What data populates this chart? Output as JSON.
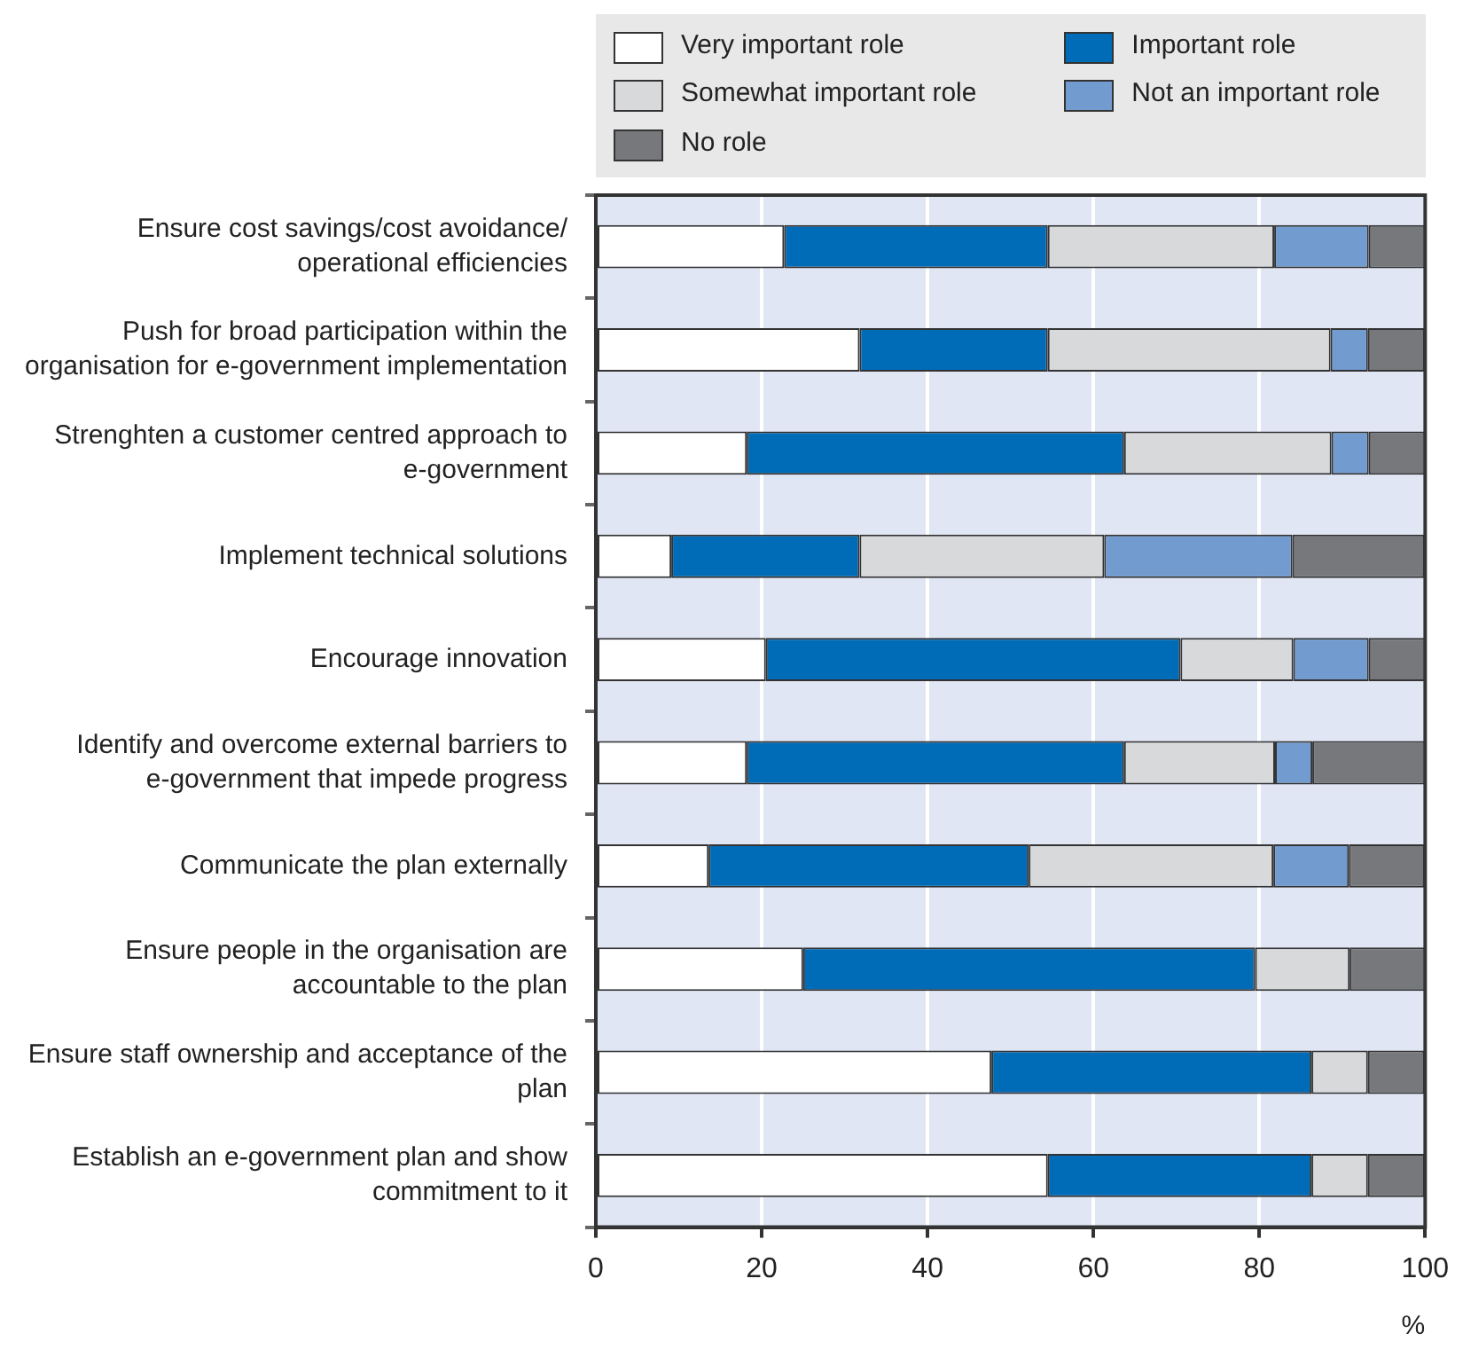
{
  "chart_data": {
    "type": "bar",
    "orientation": "horizontal",
    "stacked": true,
    "xlabel": "%",
    "categories": [
      "Ensure cost savings/cost avoidance/ operational efficiencies",
      "Push for broad participation within the organisation for e-government implementation",
      "Strenghten a customer centred approach to e-government",
      "Implement technical solutions",
      "Encourage innovation",
      "Identify and overcome external barriers to e-government that impede progress",
      "Communicate the plan externally",
      "Ensure people in the organisation are accountable to the plan",
      "Ensure staff ownership and acceptance of the plan",
      "Establish an e-government plan and show commitment to it"
    ],
    "series": [
      {
        "name": "Very important role",
        "color": "#ffffff",
        "values": [
          22.7,
          31.8,
          18.2,
          9.1,
          20.5,
          18.2,
          13.6,
          25.0,
          47.7,
          54.5
        ]
      },
      {
        "name": "Important role",
        "color": "#006bb6",
        "values": [
          31.8,
          22.7,
          45.5,
          22.7,
          50.0,
          45.5,
          38.6,
          54.5,
          38.6,
          31.8
        ]
      },
      {
        "name": "Somewhat important role",
        "color": "#d8d9db",
        "values": [
          27.3,
          34.1,
          25.0,
          29.5,
          13.6,
          18.2,
          29.5,
          11.4,
          6.8,
          6.8
        ]
      },
      {
        "name": "Not an important role",
        "color": "#729bd0",
        "values": [
          11.4,
          4.5,
          4.5,
          22.7,
          9.1,
          4.5,
          9.1,
          0,
          0,
          0
        ]
      },
      {
        "name": "No role",
        "color": "#77787b",
        "values": [
          6.8,
          6.8,
          6.8,
          15.9,
          6.8,
          13.6,
          9.1,
          9.1,
          6.8,
          6.8
        ]
      }
    ],
    "xlim": [
      0,
      100
    ],
    "xticks": [
      0,
      20,
      40,
      60,
      80,
      100
    ],
    "grid": "x",
    "legend": "top"
  }
}
